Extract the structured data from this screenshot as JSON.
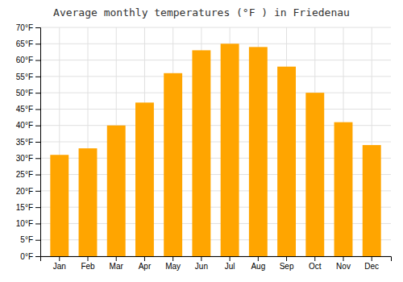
{
  "chart_data": {
    "type": "bar",
    "title": "Average monthly temperatures (°F ) in Friedenau",
    "categories": [
      "Jan",
      "Feb",
      "Mar",
      "Apr",
      "May",
      "Jun",
      "Jul",
      "Aug",
      "Sep",
      "Oct",
      "Nov",
      "Dec"
    ],
    "values": [
      31,
      33,
      40,
      47,
      56,
      63,
      65,
      64,
      58,
      50,
      41,
      34
    ],
    "color": "#FFA500",
    "ylim": [
      0,
      70
    ],
    "yticks": [
      {
        "value": 0,
        "label": "0°F"
      },
      {
        "value": 5,
        "label": "5°F"
      },
      {
        "value": 10,
        "label": "10°F"
      },
      {
        "value": 15,
        "label": "15°F"
      },
      {
        "value": 20,
        "label": "20°F"
      },
      {
        "value": 25,
        "label": "25°F"
      },
      {
        "value": 30,
        "label": "30°F"
      },
      {
        "value": 35,
        "label": "35°F"
      },
      {
        "value": 40,
        "label": "40°F"
      },
      {
        "value": 45,
        "label": "45°F"
      },
      {
        "value": 50,
        "label": "50°F"
      },
      {
        "value": 55,
        "label": "55°F"
      },
      {
        "value": 60,
        "label": "60°F"
      },
      {
        "value": 65,
        "label": "65°F"
      },
      {
        "value": 70,
        "label": "70°F"
      }
    ],
    "grid": true
  }
}
